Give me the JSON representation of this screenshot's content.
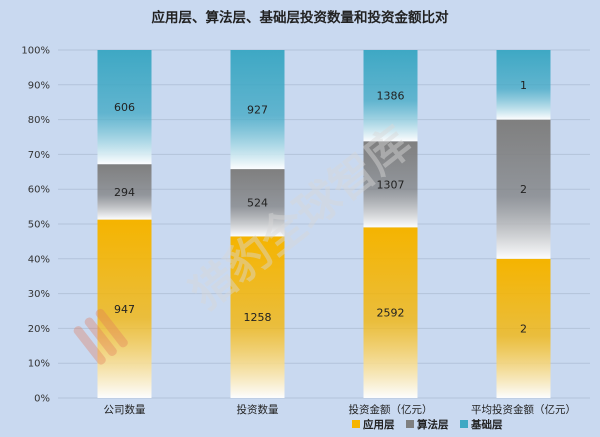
{
  "chart_data": {
    "type": "bar",
    "stacked": true,
    "normalized": true,
    "title": "应用层、算法层、基础层投资数量和投资金额比对",
    "categories": [
      "公司数量",
      "投资数量",
      "投资金额（亿元）",
      "平均投资金额（亿元）"
    ],
    "series": [
      {
        "name": "应用层",
        "values": [
          947,
          1258,
          2592,
          2
        ],
        "color": "#f5b400"
      },
      {
        "name": "算法层",
        "values": [
          294,
          524,
          1307,
          2
        ],
        "color": "#7f7f7f"
      },
      {
        "name": "基础层",
        "values": [
          606,
          927,
          1386,
          1
        ],
        "color": "#3ea8c4"
      }
    ],
    "ylim": [
      0,
      100
    ],
    "y_ticks": [
      "0%",
      "10%",
      "20%",
      "30%",
      "40%",
      "50%",
      "60%",
      "70%",
      "80%",
      "90%",
      "100%"
    ],
    "grid": true,
    "legend_position": "bottom-right"
  },
  "watermark_text": "猎豹全球智库"
}
